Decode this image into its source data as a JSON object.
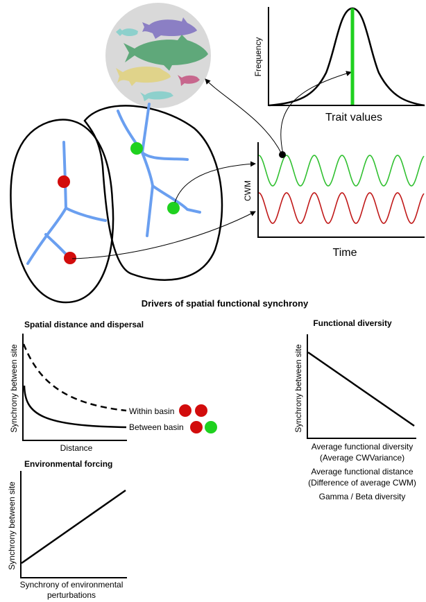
{
  "colors": {
    "river": "#6a9ff0",
    "red_site": "#d20c0c",
    "green_site": "#1fd11f",
    "green_wave": "#30c030",
    "red_wave": "#c01818",
    "fish_circle": "#d9d9d9",
    "fish_purple": "#8b7fc4",
    "fish_green": "#5fa87a",
    "fish_yellow": "#e0d38a",
    "fish_teal": "#8dd0cc",
    "fish_pink": "#c7678d",
    "trait_line": "#1fd11f"
  },
  "top": {
    "trait_panel": {
      "ylabel": "Frequency",
      "xlabel": "Trait values"
    },
    "cwm_panel": {
      "ylabel": "CWM",
      "xlabel": "Time"
    }
  },
  "main_title": "Drivers of spatial functional synchrony",
  "spatial_panel": {
    "title": "Spatial distance and dispersal",
    "ylabel": "Synchrony between site",
    "xlabel": "Distance",
    "within_label": "Within basin",
    "between_label": "Between basin"
  },
  "environment_panel": {
    "title": "Environmental forcing",
    "ylabel": "Synchrony between site",
    "xlabel_line1": "Synchrony of environmental",
    "xlabel_line2": "perturbations"
  },
  "functional_panel": {
    "title": "Functional diversity",
    "ylabel": "Synchrony between site",
    "xlabel_line1": "Average functional diversity",
    "xlabel_line2": "(Average CWVariance)",
    "extra_line1": "Average functional distance",
    "extra_line2": "(Difference of average CWM)",
    "extra_line3": "Gamma / Beta diversity"
  }
}
